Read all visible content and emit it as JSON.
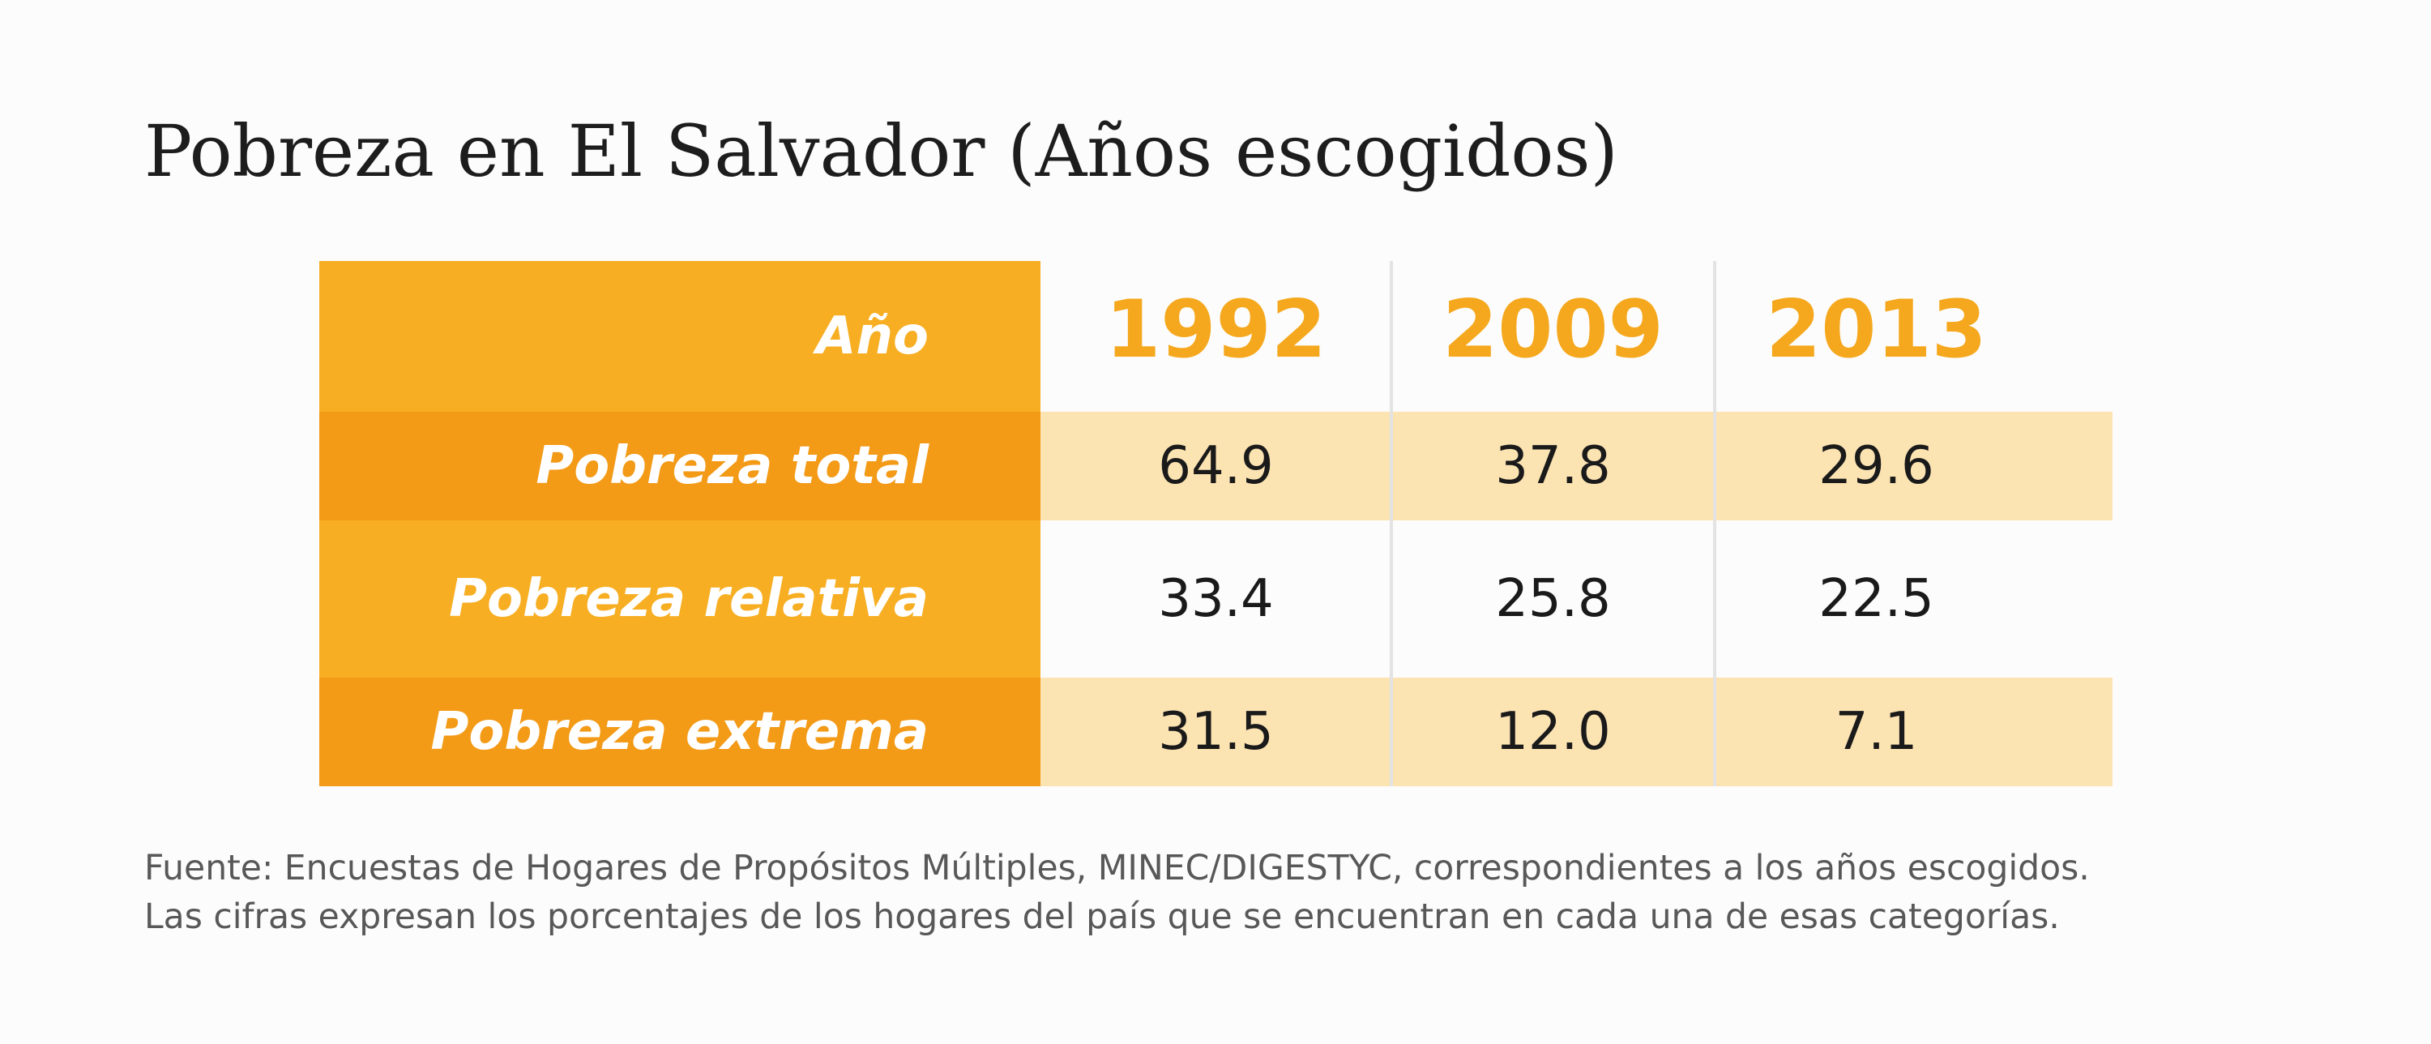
{
  "chart_data": {
    "type": "table",
    "title": "Pobreza en El Salvador (Años escogidos)",
    "header_label": "Año",
    "columns": [
      "1992",
      "2009",
      "2013"
    ],
    "rows": [
      {
        "label": "Pobreza total",
        "values": [
          "64.9",
          "37.8",
          "29.6"
        ]
      },
      {
        "label": "Pobreza relativa",
        "values": [
          "33.4",
          "25.8",
          "22.5"
        ]
      },
      {
        "label": "Pobreza extrema",
        "values": [
          "31.5",
          "12.0",
          "7.1"
        ]
      }
    ],
    "notes": [
      "Fuente: Encuestas de Hogares de Propósitos Múltiples, MINEC/DIGESTYC, correspondientes a los años escogidos.",
      "Las cifras expresan los porcentajes de los hogares del país que se encuentran en cada una de esas categorías."
    ]
  },
  "colors": {
    "header_label_bg": "#f7ae22",
    "row_label_bg": [
      "#f39a17",
      "#f7ae22",
      "#f39a17"
    ],
    "row_band_bg": [
      "#fce3b2",
      "#fcfcfc",
      "#fce3b2"
    ],
    "year_text": "#f5a81d"
  }
}
